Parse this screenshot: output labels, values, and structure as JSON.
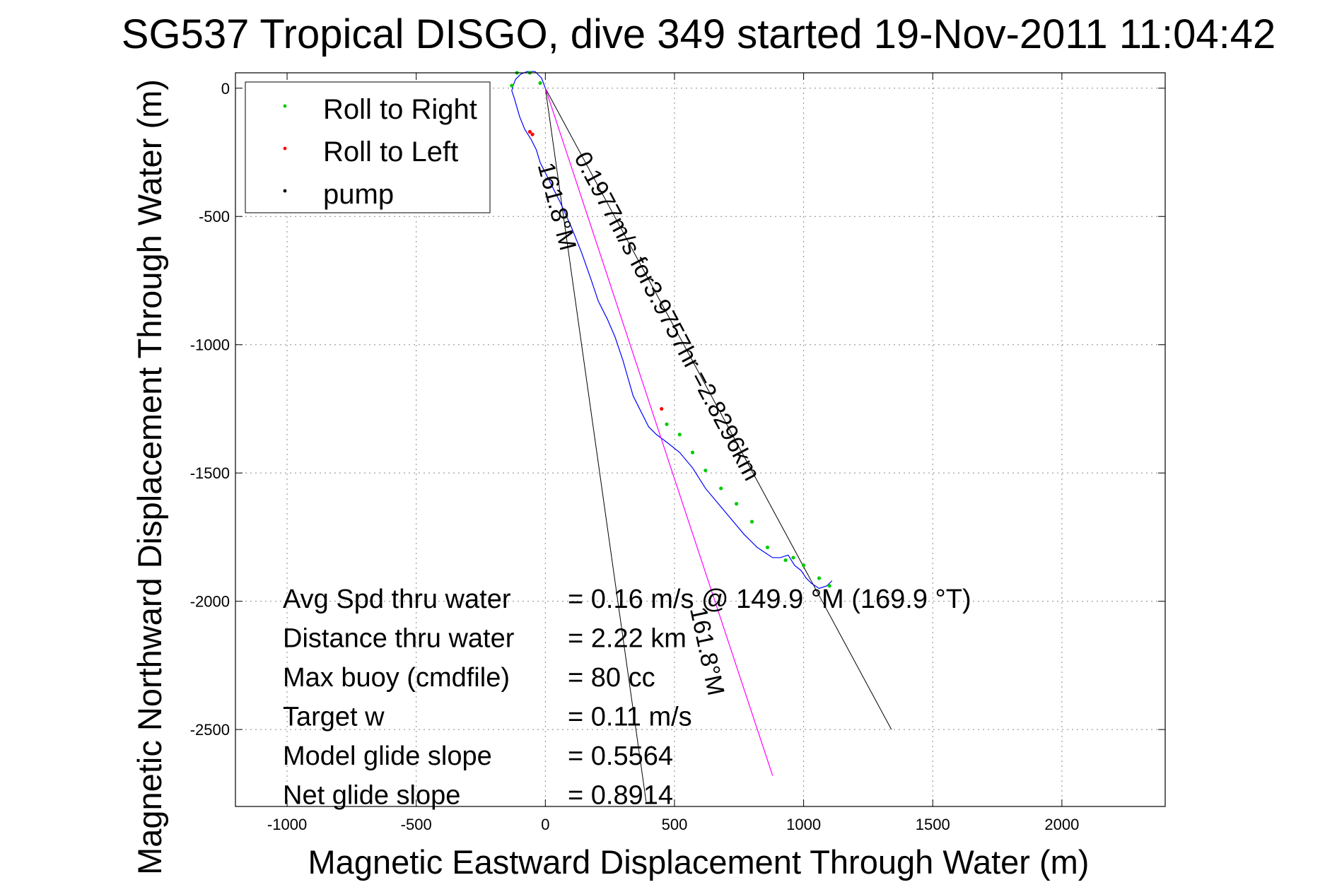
{
  "chart_data": {
    "type": "line",
    "title": "SG537 Tropical DISGO, dive 349 started 19-Nov-2011 11:04:42",
    "xlabel": "Magnetic Eastward Displacement Through Water (m)",
    "ylabel": "Magnetic Northward Displacement Through Water (m)",
    "xlim": [
      -1200,
      2400
    ],
    "ylim": [
      -2800,
      60
    ],
    "xticks": [
      -1000,
      -500,
      0,
      500,
      1000,
      1500,
      2000
    ],
    "yticks": [
      0,
      -500,
      -1000,
      -1500,
      -2000,
      -2500
    ],
    "grid": true,
    "legend_position": "top-left",
    "legend": [
      {
        "label": "Roll to Right",
        "color": "#00cc00"
      },
      {
        "label": "Roll to Left",
        "color": "#ff0000"
      },
      {
        "label": "pump",
        "color": "#000000"
      }
    ],
    "series": [
      {
        "color": "#0000ff",
        "x": [
          0,
          -15,
          -40,
          -70,
          -95,
          -115,
          -125,
          -130,
          -120,
          -100,
          -80,
          -55,
          -35,
          -20,
          0,
          25,
          60,
          100,
          140,
          175,
          205,
          240,
          270,
          300,
          320,
          340,
          370,
          400,
          430,
          470,
          520,
          570,
          620,
          670,
          720,
          770,
          820,
          850,
          880,
          910,
          940,
          965,
          990,
          1010,
          1030,
          1060,
          1090,
          1110
        ],
        "y": [
          0,
          40,
          65,
          65,
          55,
          35,
          10,
          -10,
          -40,
          -110,
          -160,
          -200,
          -240,
          -290,
          -330,
          -380,
          -450,
          -540,
          -640,
          -740,
          -830,
          -900,
          -970,
          -1060,
          -1130,
          -1200,
          -1260,
          -1320,
          -1350,
          -1380,
          -1420,
          -1480,
          -1560,
          -1620,
          -1680,
          -1740,
          -1790,
          -1810,
          -1830,
          -1830,
          -1820,
          -1860,
          -1880,
          -1910,
          -1930,
          -1950,
          -1940,
          -1920
        ]
      },
      {
        "color": "#ff00ff",
        "x": [
          0,
          880
        ],
        "y": [
          0,
          -2680
        ]
      }
    ],
    "roll_right": {
      "color": "#00cc00",
      "x": [
        -130,
        -110,
        -60,
        -20,
        470,
        520,
        570,
        620,
        680,
        740,
        800,
        860,
        930,
        960,
        1000,
        1060,
        1100
      ],
      "y": [
        10,
        60,
        60,
        20,
        -1310,
        -1350,
        -1420,
        -1490,
        -1560,
        -1620,
        -1690,
        -1790,
        -1840,
        -1830,
        -1860,
        -1910,
        -1940
      ]
    },
    "roll_left": {
      "color": "#ff0000",
      "x": [
        -60,
        -50,
        450
      ],
      "y": [
        -170,
        -180,
        -1250
      ]
    },
    "reference_lines": [
      {
        "color": "#000000",
        "x": [
          0,
          1340
        ],
        "y": [
          0,
          -2500
        ]
      },
      {
        "color": "#000000",
        "x": [
          0,
          390
        ],
        "y": [
          0,
          -2780
        ]
      }
    ],
    "annotations": [
      {
        "text": "0.1977m/s for3.9757hr =2.8296km",
        "x": 110,
        "y": -270
      },
      {
        "text": "161.8°M",
        "x": -30,
        "y": -300
      },
      {
        "text": "161.8°M",
        "x": 560,
        "y": -2030
      }
    ],
    "stats": [
      {
        "label": "Avg Spd thru water",
        "value": "=  0.16 m/s @ 149.9 °M (169.9 °T)"
      },
      {
        "label": "Distance thru water",
        "value": "=  2.22 km"
      },
      {
        "label": "Max buoy (cmdfile)",
        "value": "= 80 cc"
      },
      {
        "label": "Target w",
        "value": "= 0.11 m/s"
      },
      {
        "label": "Model glide slope",
        "value": "= 0.5564"
      },
      {
        "label": "Net glide slope",
        "value": "= 0.8914"
      }
    ]
  }
}
